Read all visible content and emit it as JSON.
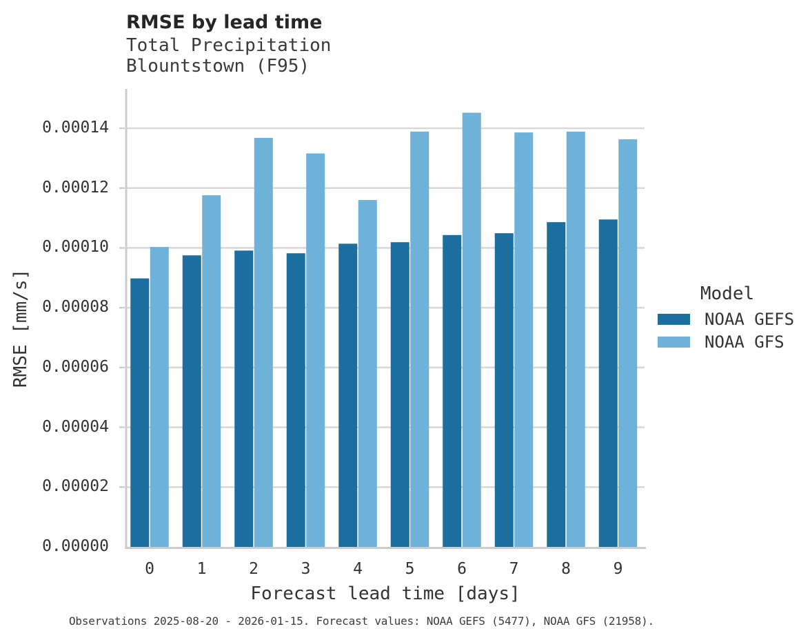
{
  "chart_data": {
    "type": "bar",
    "title": "RMSE by lead time",
    "subtitle_lines": [
      "Total Precipitation",
      "Blountstown (F95)"
    ],
    "xlabel": "Forecast lead time [days]",
    "ylabel": "RMSE [mm/s]",
    "categories": [
      "0",
      "1",
      "2",
      "3",
      "4",
      "5",
      "6",
      "7",
      "8",
      "9"
    ],
    "series": [
      {
        "name": "NOAA GEFS",
        "color": "#1b6e9e",
        "values": [
          8.98e-05,
          9.75e-05,
          9.91e-05,
          9.82e-05,
          0.0001014,
          0.0001019,
          0.0001043,
          0.0001049,
          0.0001086,
          0.0001095
        ]
      },
      {
        "name": "NOAA GFS",
        "color": "#6fb2d9",
        "values": [
          0.0001003,
          0.0001176,
          0.0001368,
          0.0001316,
          0.000116,
          0.0001389,
          0.0001452,
          0.0001386,
          0.0001389,
          0.0001363
        ]
      }
    ],
    "ylim": [
      0,
      0.000153
    ],
    "ytick_labels": [
      "0.00000",
      "0.00002",
      "0.00004",
      "0.00006",
      "0.00008",
      "0.00010",
      "0.00012",
      "0.00014"
    ],
    "ytick_values": [
      0,
      2e-05,
      4e-05,
      6e-05,
      8e-05,
      0.0001,
      0.00012,
      0.00014
    ],
    "grid": true,
    "legend_title": "Model",
    "legend_position": "right",
    "footer": "Observations 2025-08-20 - 2026-01-15. Forecast values: NOAA GEFS (5477), NOAA GFS (21958).",
    "colors": {
      "gridline": "#d9d9d9",
      "axis_spine": "#cccccc",
      "title_text": "#262626",
      "tick_text": "#333333"
    }
  }
}
